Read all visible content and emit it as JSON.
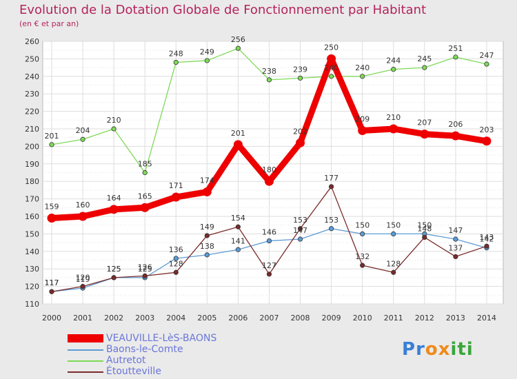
{
  "chart_data": {
    "type": "line",
    "title": "Evolution de la Dotation Globale de Fonctionnement par Habitant",
    "subtitle": "(en € et par an)",
    "x": [
      "2000",
      "2001",
      "2002",
      "2003",
      "2004",
      "2005",
      "2006",
      "2007",
      "2008",
      "2009",
      "2010",
      "2011",
      "2012",
      "2013",
      "2014"
    ],
    "ylim": [
      110,
      260
    ],
    "yticks": [
      110,
      120,
      130,
      140,
      150,
      160,
      170,
      180,
      190,
      200,
      210,
      220,
      230,
      240,
      250,
      260
    ],
    "grid": true,
    "series": [
      {
        "name": "VEAUVILLE-LèS-BAONS",
        "color": "#ee0000",
        "values": [
          159,
          160,
          164,
          165,
          171,
          174,
          201,
          180,
          202,
          250,
          209,
          210,
          207,
          206,
          203
        ]
      },
      {
        "name": "Baons-le-Comte",
        "color": "#5b9bd5",
        "values": [
          117,
          119,
          125,
          125,
          136,
          138,
          141,
          146,
          147,
          153,
          150,
          150,
          150,
          147,
          142
        ]
      },
      {
        "name": "Autretot",
        "color": "#7ed957",
        "values": [
          201,
          204,
          210,
          185,
          248,
          249,
          256,
          238,
          239,
          240,
          240,
          244,
          245,
          251,
          247
        ]
      },
      {
        "name": "Étoutteville",
        "color": "#7a2a2a",
        "values": [
          117,
          120,
          125,
          126,
          128,
          149,
          154,
          127,
          153,
          177,
          132,
          128,
          148,
          137,
          143
        ]
      }
    ]
  },
  "logo": {
    "text": "Proxiti",
    "letters": [
      "P",
      "r",
      "o",
      "x",
      "i",
      "t",
      "i"
    ],
    "colors": [
      "#3a7fd6",
      "#3a7fd6",
      "#f08a1a",
      "#f08a1a",
      "#3aa63a",
      "#3aa63a",
      "#3aa63a"
    ]
  }
}
